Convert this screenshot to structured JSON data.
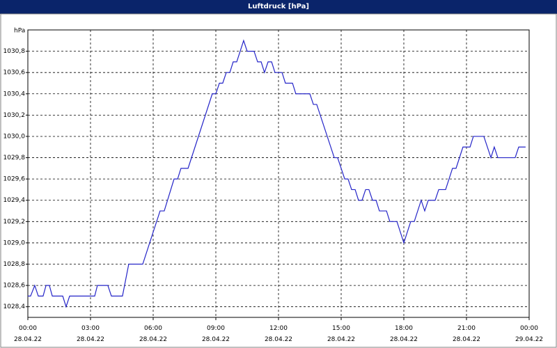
{
  "chart_data": {
    "type": "line",
    "title": "Luftdruck [hPa]",
    "y_label": "hPa",
    "color": "#2424c8",
    "grid": true,
    "xlim": [
      0,
      24
    ],
    "ylim": [
      1028.3,
      1031.0
    ],
    "xticks": [
      {
        "value": 0,
        "label": "00:00\n28.04.22"
      },
      {
        "value": 3,
        "label": "03:00\n28.04.22"
      },
      {
        "value": 6,
        "label": "06:00\n28.04.22"
      },
      {
        "value": 9,
        "label": "09:00\n28.04.22"
      },
      {
        "value": 12,
        "label": "12:00\n28.04.22"
      },
      {
        "value": 15,
        "label": "15:00\n28.04.22"
      },
      {
        "value": 18,
        "label": "18:00\n28.04.22"
      },
      {
        "value": 21,
        "label": "21:00\n28.04.22"
      },
      {
        "value": 24,
        "label": "00:00\n29.04.22"
      }
    ],
    "yticks": [
      {
        "value": 1028.4,
        "label": "1028,4"
      },
      {
        "value": 1028.6,
        "label": "1028,6"
      },
      {
        "value": 1028.8,
        "label": "1028,8"
      },
      {
        "value": 1029.0,
        "label": "1029,0"
      },
      {
        "value": 1029.2,
        "label": "1029,2"
      },
      {
        "value": 1029.4,
        "label": "1029,4"
      },
      {
        "value": 1029.6,
        "label": "1029,6"
      },
      {
        "value": 1029.8,
        "label": "1029,8"
      },
      {
        "value": 1030.0,
        "label": "1030,0"
      },
      {
        "value": 1030.2,
        "label": "1030,2"
      },
      {
        "value": 1030.4,
        "label": "1030,4"
      },
      {
        "value": 1030.6,
        "label": "1030,6"
      },
      {
        "value": 1030.8,
        "label": "1030,8"
      }
    ],
    "x": [
      0,
      0.13,
      0.33,
      0.5,
      0.73,
      0.87,
      1.03,
      1.17,
      1.67,
      1.83,
      2,
      3.2,
      3.33,
      3.83,
      4,
      4.53,
      4.83,
      5.5,
      6.33,
      6.53,
      7,
      7.17,
      7.33,
      7.67,
      8.83,
      9,
      9.17,
      9.33,
      9.5,
      9.67,
      9.83,
      10,
      10.33,
      10.5,
      10.83,
      11,
      11.17,
      11.33,
      11.5,
      11.67,
      11.83,
      12.17,
      12.33,
      12.67,
      12.83,
      13.5,
      13.67,
      13.83,
      14.67,
      14.83,
      15.17,
      15.33,
      15.5,
      15.67,
      15.83,
      16,
      16.17,
      16.33,
      16.5,
      16.67,
      16.83,
      17.17,
      17.33,
      17.67,
      18,
      18.33,
      18.5,
      18.83,
      19,
      19.17,
      19.5,
      19.67,
      20,
      20.33,
      20.5,
      20.83,
      21.17,
      21.33,
      21.83,
      22.17,
      22.33,
      22.5,
      23.33,
      23.5,
      23.83
    ],
    "values": [
      1028.5,
      1028.5,
      1028.6,
      1028.5,
      1028.5,
      1028.6,
      1028.6,
      1028.5,
      1028.5,
      1028.4,
      1028.5,
      1028.5,
      1028.6,
      1028.6,
      1028.5,
      1028.5,
      1028.8,
      1028.8,
      1029.3,
      1029.3,
      1029.6,
      1029.6,
      1029.7,
      1029.7,
      1030.4,
      1030.4,
      1030.5,
      1030.5,
      1030.6,
      1030.6,
      1030.7,
      1030.7,
      1030.9,
      1030.8,
      1030.8,
      1030.7,
      1030.7,
      1030.6,
      1030.7,
      1030.7,
      1030.6,
      1030.6,
      1030.5,
      1030.5,
      1030.4,
      1030.4,
      1030.3,
      1030.3,
      1029.8,
      1029.8,
      1029.6,
      1029.6,
      1029.5,
      1029.5,
      1029.4,
      1029.4,
      1029.5,
      1029.5,
      1029.4,
      1029.4,
      1029.3,
      1029.3,
      1029.2,
      1029.2,
      1029.0,
      1029.2,
      1029.2,
      1029.4,
      1029.3,
      1029.4,
      1029.4,
      1029.5,
      1029.5,
      1029.7,
      1029.7,
      1029.9,
      1029.9,
      1030.0,
      1030.0,
      1029.8,
      1029.9,
      1029.8,
      1029.8,
      1029.9,
      1029.9
    ]
  }
}
